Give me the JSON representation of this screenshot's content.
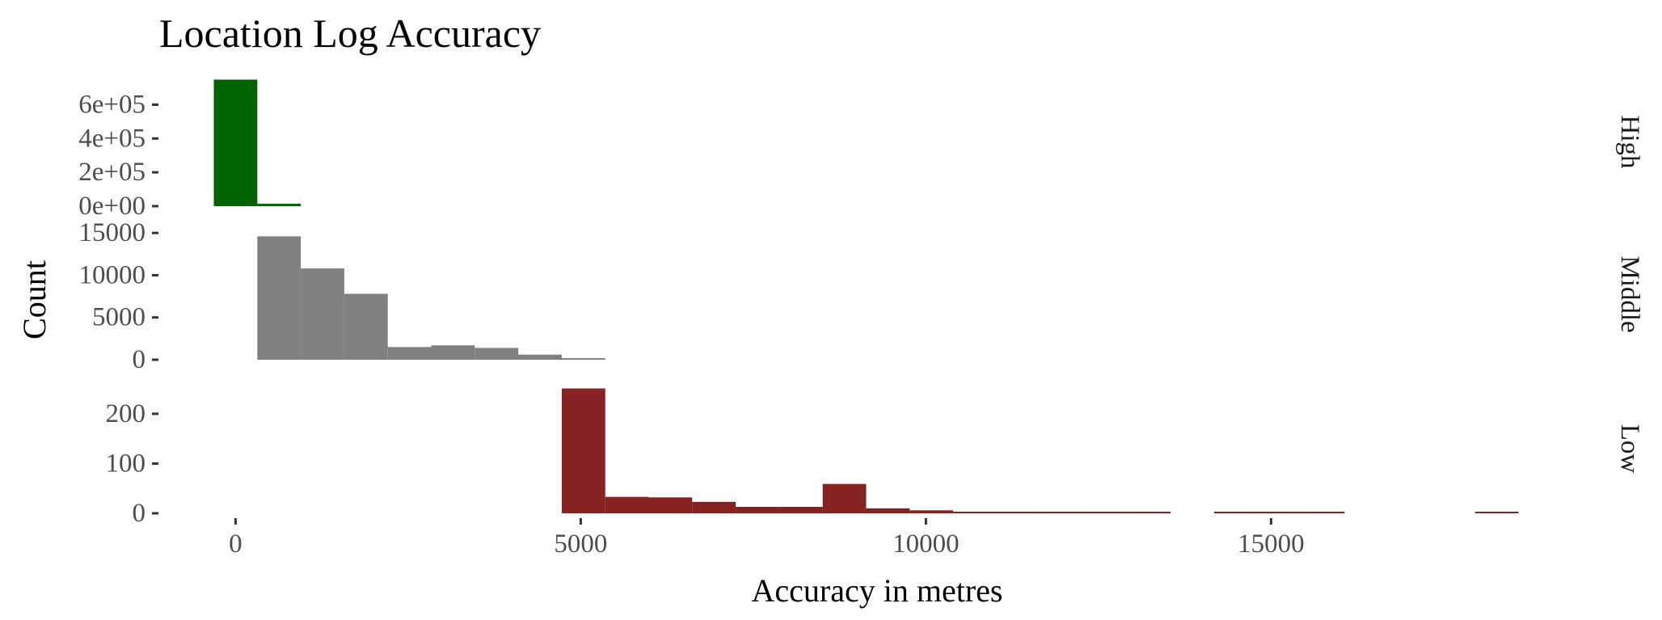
{
  "chart_data": {
    "type": "bar",
    "title": "Location Log Accuracy",
    "xlabel": "Accuracy in metres",
    "ylabel": "Count",
    "grid": false,
    "legend": "none",
    "x_ticks": [
      0,
      5000,
      10000,
      15000
    ],
    "x_tick_labels": [
      "0",
      "5000",
      "10000",
      "15000"
    ],
    "xlim": [
      -1000,
      19000
    ],
    "bin_width": 630,
    "panels": [
      {
        "name": "High",
        "color": "#006400",
        "ylim": [
          0,
          760000
        ],
        "y_ticks": [
          0,
          200000,
          400000,
          600000
        ],
        "y_tick_labels": [
          "0e+00",
          "2e+05",
          "4e+05",
          "6e+05"
        ],
        "bins": [
          {
            "x0": -315,
            "x1": 315,
            "count": 748000
          },
          {
            "x0": 315,
            "x1": 945,
            "count": 14000
          }
        ]
      },
      {
        "name": "Middle",
        "color": "#808080",
        "ylim": [
          0,
          15500
        ],
        "y_ticks": [
          0,
          5000,
          10000,
          15000
        ],
        "y_tick_labels": [
          "0",
          "5000",
          "10000",
          "15000"
        ],
        "bins": [
          {
            "x0": 315,
            "x1": 945,
            "count": 14600
          },
          {
            "x0": 945,
            "x1": 1575,
            "count": 10800
          },
          {
            "x0": 1575,
            "x1": 2205,
            "count": 7800
          },
          {
            "x0": 2205,
            "x1": 2835,
            "count": 1500
          },
          {
            "x0": 2835,
            "x1": 3465,
            "count": 1700
          },
          {
            "x0": 3465,
            "x1": 4095,
            "count": 1400
          },
          {
            "x0": 4095,
            "x1": 4725,
            "count": 600
          },
          {
            "x0": 4725,
            "x1": 5355,
            "count": 150
          }
        ]
      },
      {
        "name": "Low",
        "color": "#862222",
        "ylim": [
          0,
          260
        ],
        "y_ticks": [
          0,
          100,
          200
        ],
        "y_tick_labels": [
          "0",
          "100",
          "200"
        ],
        "bins": [
          {
            "x0": 4725,
            "x1": 5355,
            "count": 251
          },
          {
            "x0": 5355,
            "x1": 5985,
            "count": 33
          },
          {
            "x0": 5985,
            "x1": 6615,
            "count": 32
          },
          {
            "x0": 6615,
            "x1": 7245,
            "count": 23
          },
          {
            "x0": 7245,
            "x1": 7875,
            "count": 13
          },
          {
            "x0": 7875,
            "x1": 8505,
            "count": 13
          },
          {
            "x0": 8505,
            "x1": 9135,
            "count": 59
          },
          {
            "x0": 9135,
            "x1": 9765,
            "count": 10
          },
          {
            "x0": 9765,
            "x1": 10395,
            "count": 6
          },
          {
            "x0": 10395,
            "x1": 11025,
            "count": 2
          },
          {
            "x0": 11025,
            "x1": 11655,
            "count": 3
          },
          {
            "x0": 11655,
            "x1": 12285,
            "count": 1
          },
          {
            "x0": 12285,
            "x1": 12915,
            "count": 3
          },
          {
            "x0": 12915,
            "x1": 13545,
            "count": 1
          },
          {
            "x0": 13545,
            "x1": 14175,
            "count": 0
          },
          {
            "x0": 14175,
            "x1": 14805,
            "count": 1
          },
          {
            "x0": 14805,
            "x1": 15435,
            "count": 1
          },
          {
            "x0": 15435,
            "x1": 16065,
            "count": 1
          },
          {
            "x0": 16065,
            "x1": 16695,
            "count": 0
          },
          {
            "x0": 16695,
            "x1": 17325,
            "count": 0
          },
          {
            "x0": 17325,
            "x1": 17955,
            "count": 0
          },
          {
            "x0": 17955,
            "x1": 18585,
            "count": 1
          }
        ]
      }
    ]
  }
}
